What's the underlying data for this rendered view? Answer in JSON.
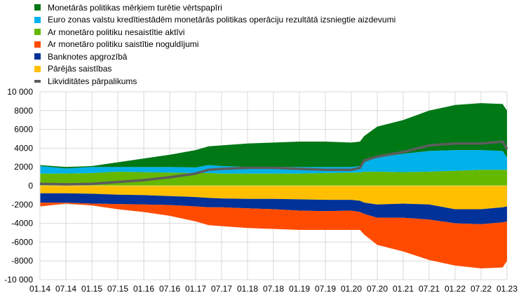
{
  "chart_data": {
    "type": "area",
    "stacked": true,
    "legend_position": "top-left",
    "grid": true,
    "ylim": [
      -10000,
      10000
    ],
    "yticks": [
      10000,
      8000,
      6000,
      4000,
      2000,
      0,
      -2000,
      -4000,
      -6000,
      -8000,
      -10000
    ],
    "ytick_labels": [
      "10 000",
      "8000",
      "6000",
      "4000",
      "2000",
      "0",
      "-2000",
      "-4000",
      "-6000",
      "-8000",
      "-10 000"
    ],
    "xtick_labels": [
      "01.14",
      "07.14",
      "01.15",
      "07.15",
      "01.16",
      "07.16",
      "01.17",
      "07.17",
      "01.18",
      "07.18",
      "01.19",
      "07.19",
      "01.20",
      "07.20",
      "01.21",
      "07.21",
      "01.22",
      "07.22",
      "01.23"
    ],
    "x": [
      "2014-01",
      "2014-07",
      "2015-01",
      "2015-07",
      "2016-01",
      "2016-07",
      "2017-01",
      "2017-04",
      "2017-07",
      "2018-01",
      "2018-07",
      "2019-01",
      "2019-07",
      "2020-01",
      "2020-03",
      "2020-04",
      "2020-07",
      "2021-01",
      "2021-07",
      "2022-01",
      "2022-07",
      "2022-12",
      "2023-01"
    ],
    "series": [
      {
        "name": "Ar monetāro politiku nesaistītie aktīvi",
        "color": "#65b800",
        "kind": "area",
        "values": [
          1300,
          1300,
          1350,
          1500,
          1450,
          1400,
          1350,
          1350,
          1300,
          1300,
          1300,
          1300,
          1350,
          1400,
          1400,
          1500,
          1500,
          1450,
          1500,
          1600,
          1700,
          1700,
          1700
        ]
      },
      {
        "name": "Euro zonas valstu kredītiestādēm monetārās politikas operāciju rezultātā izsniegtie aizdevumi",
        "color": "#00b1ea",
        "kind": "area",
        "values": [
          800,
          550,
          650,
          500,
          550,
          600,
          600,
          850,
          800,
          700,
          700,
          700,
          650,
          600,
          700,
          1000,
          1500,
          1950,
          2200,
          2200,
          2100,
          2000,
          1300
        ]
      },
      {
        "name": "Monetārās politikas mērķiem turētie vērtspapīri",
        "color": "#007816",
        "kind": "area",
        "values": [
          100,
          150,
          100,
          500,
          900,
          1300,
          1850,
          2000,
          2200,
          2500,
          2600,
          2700,
          2700,
          2600,
          2600,
          2800,
          3300,
          3600,
          4300,
          4800,
          5000,
          5000,
          5000
        ]
      },
      {
        "name": "Pārējās saistības",
        "color": "#ffbf00",
        "kind": "area",
        "values": [
          -800,
          -800,
          -850,
          -950,
          -1000,
          -1100,
          -1200,
          -1300,
          -1350,
          -1400,
          -1400,
          -1450,
          -1500,
          -1500,
          -1600,
          -1800,
          -2000,
          -1900,
          -2000,
          -2500,
          -2500,
          -2300,
          -2200
        ]
      },
      {
        "name": "Banknotes apgrozībā",
        "color": "#003299",
        "kind": "area",
        "values": [
          -1000,
          -1000,
          -1050,
          -1000,
          -1000,
          -950,
          -1000,
          -1000,
          -950,
          -1000,
          -1100,
          -1200,
          -1200,
          -1150,
          -1200,
          -1200,
          -1400,
          -1500,
          -1600,
          -1500,
          -1600,
          -1600,
          -1600
        ]
      },
      {
        "name": "Ar monetāro politiku saistītie noguldījumi",
        "color": "#ff4b00",
        "kind": "area",
        "values": [
          -400,
          -100,
          -200,
          -550,
          -800,
          -1150,
          -1600,
          -1900,
          -2000,
          -2100,
          -2100,
          -2050,
          -2000,
          -2050,
          -1900,
          -2200,
          -2900,
          -3600,
          -4300,
          -4500,
          -4700,
          -4800,
          -4200
        ]
      },
      {
        "name": "Likviditātes pārpalikums",
        "color": "#5c5c5c",
        "kind": "line",
        "values": [
          200,
          150,
          200,
          400,
          600,
          900,
          1300,
          1700,
          1800,
          1900,
          1900,
          1800,
          1700,
          1700,
          1900,
          2700,
          3100,
          3600,
          4300,
          4500,
          4500,
          4700,
          3900
        ]
      }
    ]
  },
  "legend": [
    {
      "label": "Monetārās politikas mērķiem turētie vērtspapīri",
      "color": "#007816"
    },
    {
      "label": "Euro zonas valstu kredītiestādēm monetārās politikas operāciju rezultātā izsniegtie aizdevumi",
      "color": "#00b1ea"
    },
    {
      "label": "Ar monetāro politiku nesaistītie aktīvi",
      "color": "#65b800"
    },
    {
      "label": "Ar monetāro politiku saistītie noguldījumi",
      "color": "#ff4b00"
    },
    {
      "label": "Banknotes apgrozībā",
      "color": "#003299"
    },
    {
      "label": "Pārējās saistības",
      "color": "#ffbf00"
    },
    {
      "label": "Likviditātes pārpalikums",
      "color": "#5c5c5c",
      "line": true
    }
  ]
}
